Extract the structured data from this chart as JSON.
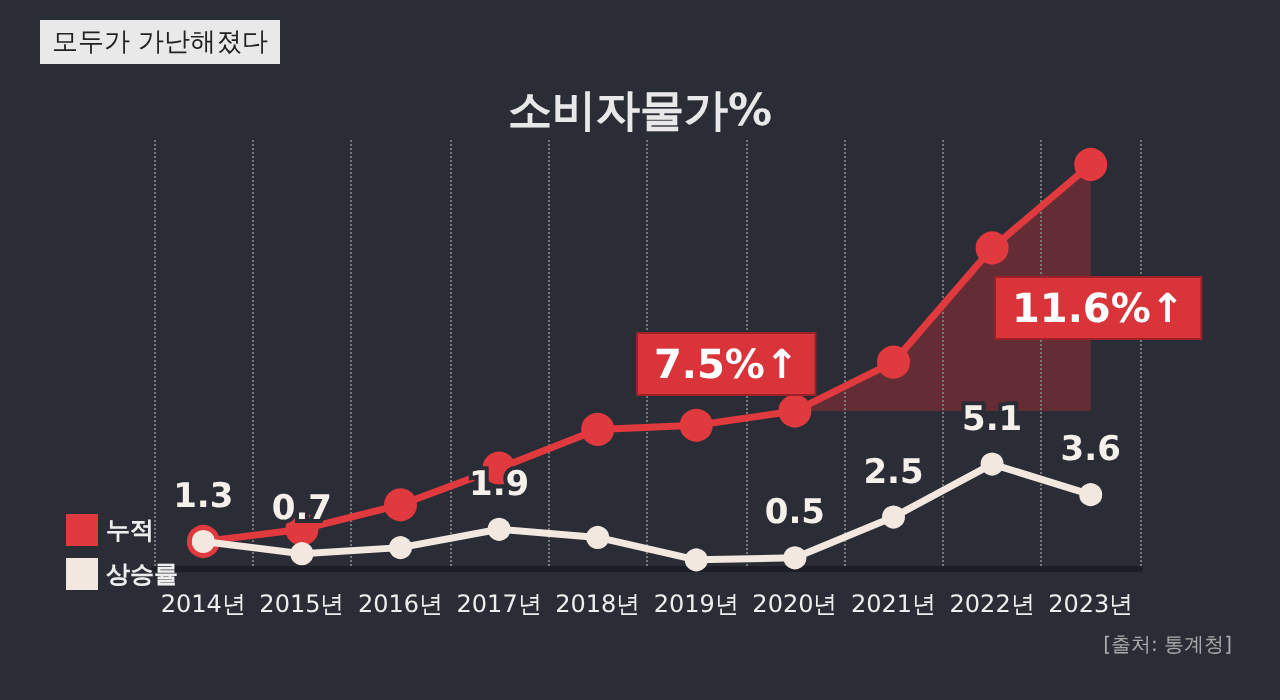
{
  "chart_data": {
    "type": "line",
    "title": "소비자물가%",
    "subtitle": "모두가 가난해졌다",
    "categories": [
      "2014년",
      "2015년",
      "2016년",
      "2017년",
      "2018년",
      "2019년",
      "2020년",
      "2021년",
      "2022년",
      "2023년"
    ],
    "series": [
      {
        "name": "누적",
        "color": "#e0393e",
        "values": [
          1.3,
          1.9,
          3.1,
          4.9,
          6.8,
          7.0,
          7.7,
          10.1,
          15.7,
          19.8
        ]
      },
      {
        "name": "상승률",
        "color": "#f2e8df",
        "values": [
          1.3,
          0.7,
          1.0,
          1.9,
          1.5,
          0.4,
          0.5,
          2.5,
          5.1,
          3.6
        ],
        "value_labels": [
          "1.3",
          "0.7",
          null,
          "1.9",
          null,
          null,
          "0.5",
          "2.5",
          "5.1",
          "3.6"
        ]
      }
    ],
    "annotations": [
      "7.5%↑",
      "11.6%↑",
      "[출처: 통계청]"
    ],
    "grid": "x",
    "legend": "left",
    "marker": "circle",
    "line_style": "solid"
  }
}
